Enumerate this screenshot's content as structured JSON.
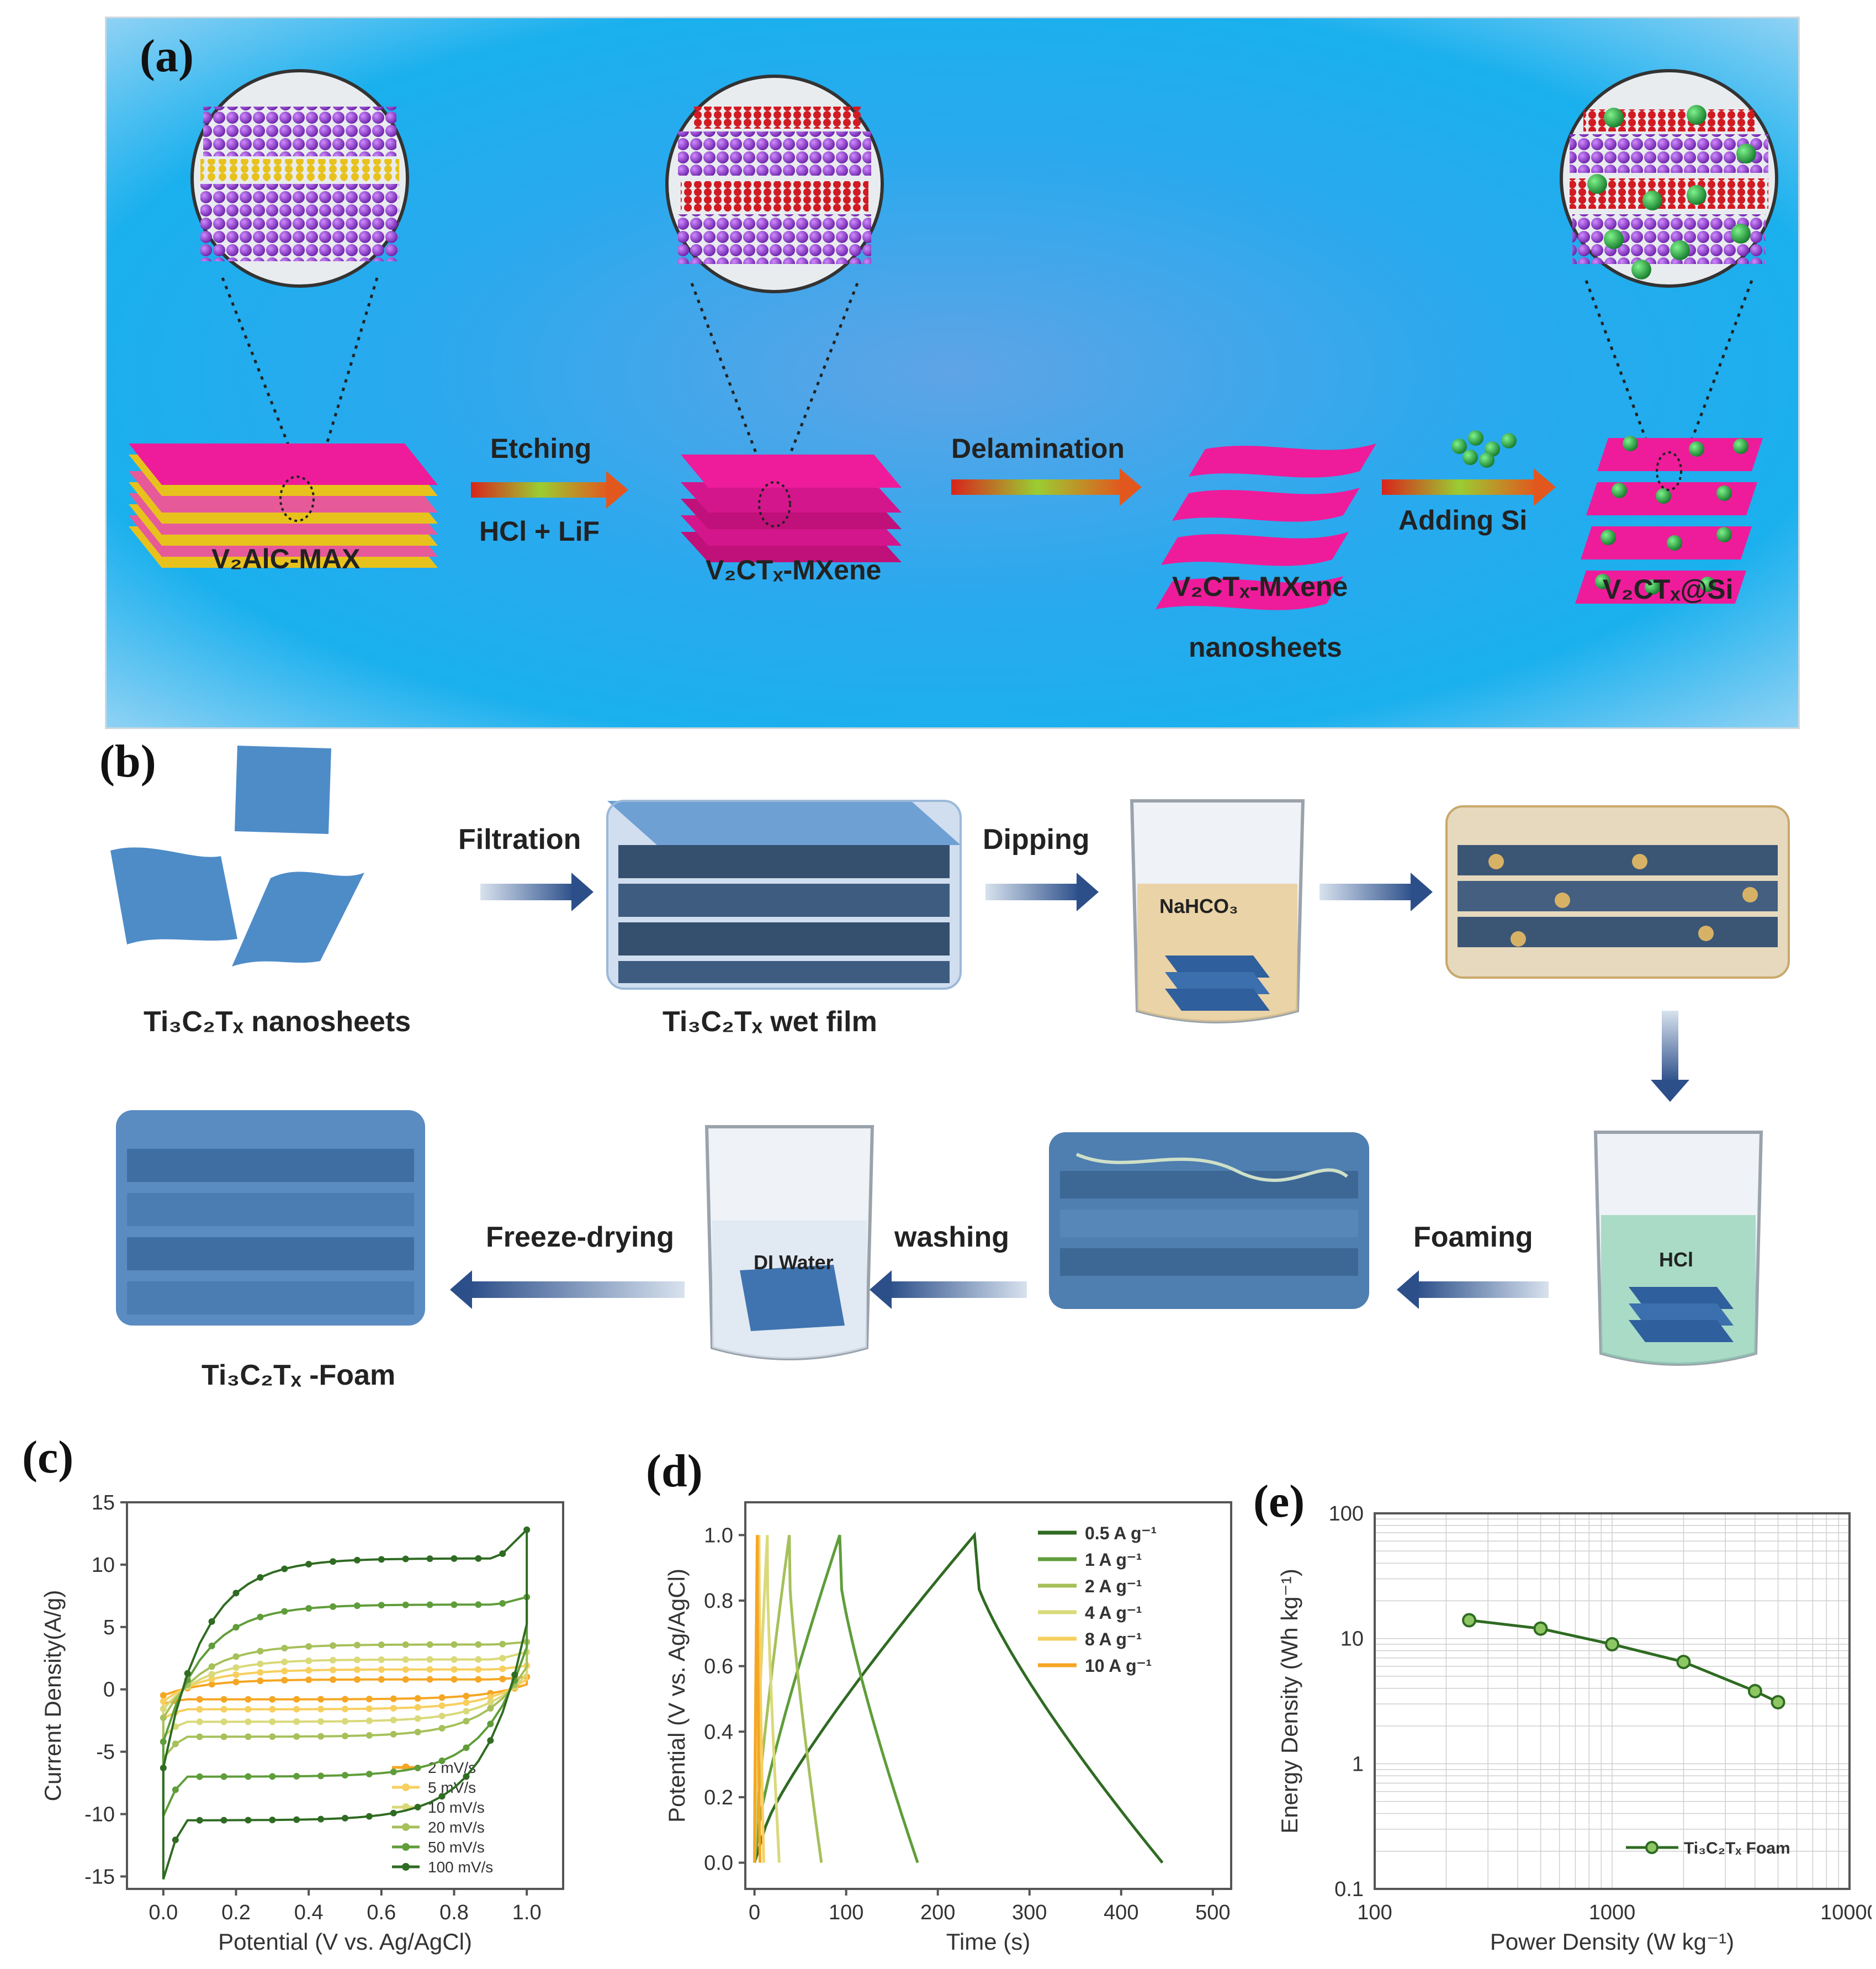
{
  "panel_a": {
    "letter": "(a)",
    "stages": {
      "max": "V₂AlC-MAX",
      "mxene": "V₂CTₓ-MXene",
      "nanosheets_line1": "V₂CTₓ-MXene",
      "nanosheets_line2": "nanosheets",
      "composite": "V₂CTₓ@Si"
    },
    "arrows": {
      "etching_top": "Etching",
      "etching_bottom": "HCl + LiF",
      "delamination": "Delamination",
      "adding_si": "Adding Si"
    }
  },
  "panel_b": {
    "letter": "(b)",
    "labels": {
      "nanosheets": "Ti₃C₂Tₓ nanosheets",
      "wet_film": "Ti₃C₂Tₓ wet film",
      "foam": "Ti₃C₂Tₓ -Foam"
    },
    "arrows": {
      "filtration": "Filtration",
      "dipping": "Dipping",
      "foaming": "Foaming",
      "washing": "washing",
      "freeze_drying": "Freeze-drying"
    },
    "beakers": {
      "nahco3": "NaHCO₃",
      "hcl": "HCl",
      "di_water": "DI Water"
    }
  },
  "panel_c": {
    "letter": "(c)",
    "chart_data": {
      "type": "line",
      "xlabel": "Potential (V vs. Ag/AgCl)",
      "ylabel": "Current Density(A/g)",
      "xlim": [
        -0.1,
        1.1
      ],
      "ylim": [
        -16,
        15
      ],
      "xticks": [
        "0.0",
        "0.2",
        "0.4",
        "0.6",
        "0.8",
        "1.0"
      ],
      "yticks": [
        "15",
        "10",
        "5",
        "0",
        "-5",
        "-10",
        "-15"
      ],
      "legend_position": "bottom-right",
      "series": [
        {
          "name": "2 mV/s",
          "color": "#f5a623",
          "anodic": 0.8,
          "cathodic": -0.8,
          "peak": 1.0
        },
        {
          "name": "5 mV/s",
          "color": "#f7cf5e",
          "anodic": 1.6,
          "cathodic": -1.6,
          "peak": 1.9
        },
        {
          "name": "10 mV/s",
          "color": "#d9d979",
          "anodic": 2.4,
          "cathodic": -2.6,
          "peak": 3.0
        },
        {
          "name": "20 mV/s",
          "color": "#a6c05a",
          "anodic": 3.6,
          "cathodic": -3.8,
          "peak": 3.8
        },
        {
          "name": "50 mV/s",
          "color": "#5f9d3a",
          "anodic": 6.8,
          "cathodic": -7.0,
          "peak": 7.4
        },
        {
          "name": "100 mV/s",
          "color": "#2f6b22",
          "anodic": 10.5,
          "cathodic": -10.5,
          "peak": 12.8
        }
      ]
    }
  },
  "panel_d": {
    "letter": "(d)",
    "chart_data": {
      "type": "line",
      "xlabel": "Time (s)",
      "ylabel": "Potential (V vs. Ag/AgCl)",
      "xlim": [
        -10,
        520
      ],
      "ylim": [
        -0.08,
        1.1
      ],
      "xticks": [
        "0",
        "100",
        "200",
        "300",
        "400",
        "500"
      ],
      "yticks": [
        "1.0",
        "0.8",
        "0.6",
        "0.4",
        "0.2",
        "0.0"
      ],
      "legend_position": "top-right",
      "series": [
        {
          "name": "0.5 A g⁻¹",
          "color": "#2f6b22",
          "charge_end": 240,
          "discharge_end": 445
        },
        {
          "name": "1 A g⁻¹",
          "color": "#5f9d3a",
          "charge_end": 93,
          "discharge_end": 178
        },
        {
          "name": "2 A g⁻¹",
          "color": "#a6c05a",
          "charge_end": 38,
          "discharge_end": 73
        },
        {
          "name": "4 A g⁻¹",
          "color": "#d9d979",
          "charge_end": 14,
          "discharge_end": 27
        },
        {
          "name": "8 A g⁻¹",
          "color": "#f7cf5e",
          "charge_end": 5,
          "discharge_end": 10
        },
        {
          "name": "10 A g⁻¹",
          "color": "#f5a623",
          "charge_end": 3,
          "discharge_end": 6
        }
      ]
    }
  },
  "panel_e": {
    "letter": "(e)",
    "chart_data": {
      "type": "scatter",
      "xscale": "log",
      "yscale": "log",
      "xlabel": "Power Density (W kg⁻¹)",
      "ylabel": "Energy Density (Wh kg⁻¹)",
      "xlim": [
        100,
        10000
      ],
      "ylim": [
        0.1,
        100
      ],
      "xticks": [
        "100",
        "1000",
        "10000"
      ],
      "yticks": [
        "100",
        "10",
        "1",
        "0.1"
      ],
      "grid": true,
      "legend_position": "bottom-right",
      "series": [
        {
          "name": "Ti₃C₂Tₓ Foam",
          "color": "#2f6b22",
          "x": [
            250,
            500,
            1000,
            2000,
            4000,
            5000
          ],
          "y": [
            14,
            12,
            9,
            6.5,
            3.8,
            3.1
          ]
        }
      ]
    }
  }
}
